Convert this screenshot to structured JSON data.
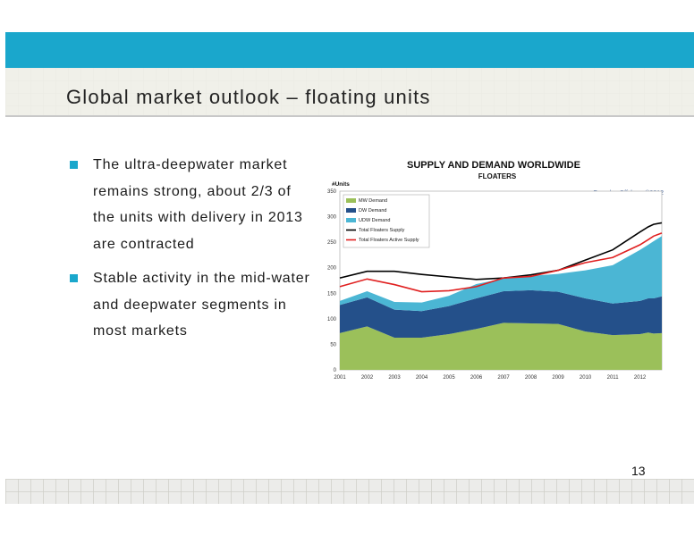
{
  "slide": {
    "title": "Global market outlook – floating units",
    "bullets": [
      "The ultra-deepwater market remains strong, about 2/3 of the units with delivery in 2013 are contracted",
      "Stable activity in the mid-water and deepwater segments in most markets"
    ],
    "page_number": "13"
  },
  "chart_data": {
    "type": "area",
    "title": "SUPPLY AND DEMAND WORLDWIDE",
    "subtitle": "FLOATERS",
    "ylabel": "#Units",
    "xlabel": "",
    "source": "Fearnley Offshore ©2012",
    "ylim": [
      0,
      350
    ],
    "yticks": [
      0,
      50,
      100,
      150,
      200,
      250,
      300,
      350
    ],
    "xlim": [
      2001,
      2012.8
    ],
    "xticks": [
      "2001",
      "2002",
      "2003",
      "2004",
      "2005",
      "2006",
      "2007",
      "2008",
      "2009",
      "2010",
      "2011",
      "2012"
    ],
    "grid": false,
    "legend": "top-left",
    "x": [
      2001,
      2002,
      2003,
      2004,
      2005,
      2006,
      2007,
      2008,
      2009,
      2010,
      2011,
      2012,
      2012.3,
      2012.5,
      2012.8
    ],
    "stacked_areas": [
      {
        "name": "MW Demand",
        "color": "#9bc05a",
        "values": [
          72,
          85,
          63,
          63,
          70,
          80,
          92,
          91,
          90,
          75,
          68,
          70,
          73,
          71,
          72
        ]
      },
      {
        "name": "DW Demand",
        "color": "#24508a",
        "values": [
          55,
          57,
          55,
          52,
          55,
          60,
          62,
          65,
          63,
          65,
          62,
          65,
          67,
          69,
          72
        ]
      },
      {
        "name": "UDW Demand",
        "color": "#4bb6d4",
        "values": [
          8,
          12,
          15,
          17,
          20,
          28,
          25,
          28,
          35,
          55,
          75,
          100,
          105,
          112,
          118
        ]
      }
    ],
    "lines": [
      {
        "name": "Total Floaters Supply",
        "color": "#000000",
        "values": [
          180,
          193,
          193,
          187,
          182,
          177,
          180,
          186,
          195,
          215,
          235,
          270,
          280,
          285,
          288
        ]
      },
      {
        "name": "Total Floaters Active Supply",
        "color": "#e02020",
        "values": [
          163,
          178,
          167,
          153,
          155,
          163,
          180,
          183,
          195,
          210,
          220,
          245,
          255,
          262,
          268
        ]
      }
    ]
  }
}
